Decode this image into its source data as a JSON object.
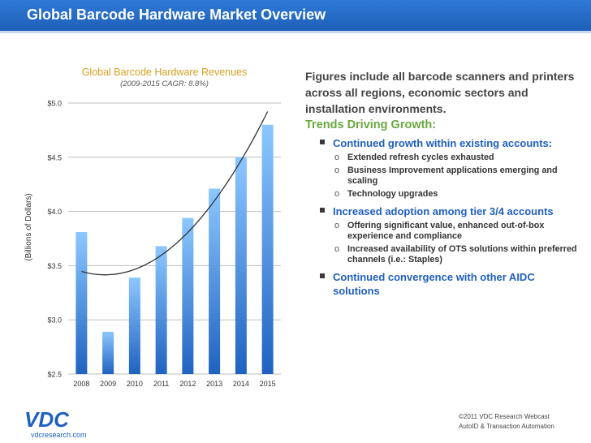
{
  "header": {
    "title": "Global Barcode Hardware Market Overview"
  },
  "chart_data": {
    "type": "bar",
    "title": "Global Barcode Hardware Revenues",
    "subtitle": "(2009-2015 CAGR: 8.8%)",
    "ylabel": "(Billions of Dollars)",
    "categories": [
      "2008",
      "2009",
      "2010",
      "2011",
      "2012",
      "2013",
      "2014",
      "2015"
    ],
    "values": [
      3.81,
      2.89,
      3.39,
      3.68,
      3.94,
      4.21,
      4.5,
      4.8
    ],
    "ylim": [
      2.5,
      5.0
    ],
    "yticks": [
      "$5.0",
      "$4.5",
      "$4.0",
      "$3.5",
      "$3.0",
      "$2.5"
    ],
    "trendline": "polynomial",
    "bar_color": "#3a8ee8",
    "grid": true
  },
  "right": {
    "intro": "Figures include all barcode scanners and printers across all regions, economic sectors and installation environments.",
    "trends_title": "Trends Driving Growth:",
    "bullets": [
      {
        "text": "Continued growth within existing accounts:",
        "subs": [
          "Extended refresh cycles exhausted",
          "Business Improvement applications emerging and scaling",
          "Technology upgrades"
        ]
      },
      {
        "text": "Increased adoption among tier 3/4 accounts",
        "subs": [
          "Offering significant value, enhanced out-of-box experience and compliance",
          "Increased availability of OTS solutions within preferred channels (i.e.: Staples)"
        ]
      },
      {
        "text": "Continued convergence with other AIDC solutions",
        "subs": []
      }
    ]
  },
  "logo": {
    "text": "VDC",
    "url": "vdcresearch.com"
  },
  "footer": {
    "line1": "©2011 VDC Research Webcast",
    "line2": "AutoID & Transaction Automation"
  }
}
